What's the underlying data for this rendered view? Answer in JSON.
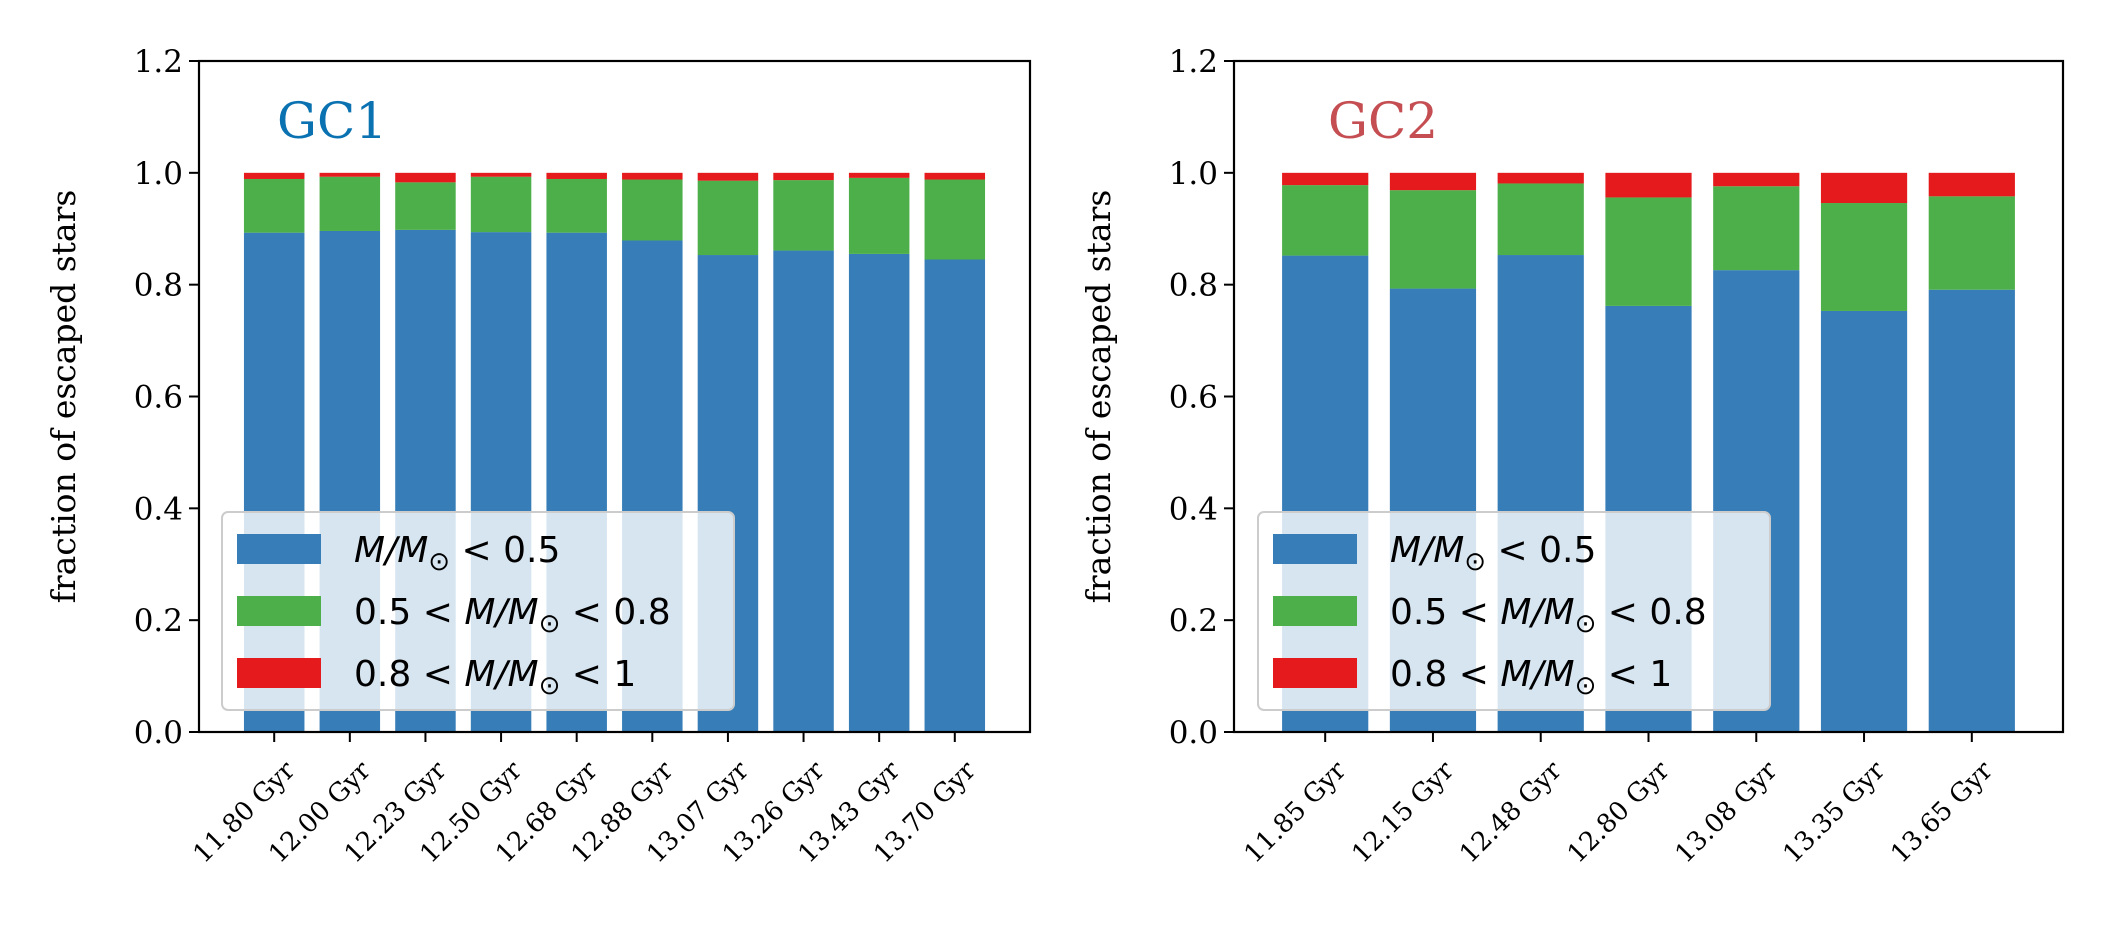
{
  "chart_data": [
    {
      "type": "bar",
      "stacked": true,
      "title": "GC1",
      "title_color": "#0b72b2",
      "ylabel": "fraction of escaped stars",
      "xlabel": "",
      "ylim": [
        0,
        1.2
      ],
      "yticks": [
        0.0,
        0.2,
        0.4,
        0.6,
        0.8,
        1.0,
        1.2
      ],
      "ytick_labels": [
        "0.0",
        "0.2",
        "0.4",
        "0.6",
        "0.8",
        "1.0",
        "1.2"
      ],
      "legend_position": "lower-left",
      "categories": [
        "11.80 Gyr",
        "12.00 Gyr",
        "12.23 Gyr",
        "12.50 Gyr",
        "12.68 Gyr",
        "12.88 Gyr",
        "13.07 Gyr",
        "13.26 Gyr",
        "13.43 Gyr",
        "13.70 Gyr"
      ],
      "series": [
        {
          "name": "M/M⊙ < 0.5",
          "legend": {
            "pre": "",
            "post": " < 0.5"
          },
          "color": "#377eb8",
          "values": [
            0.893,
            0.896,
            0.898,
            0.894,
            0.893,
            0.879,
            0.853,
            0.861,
            0.855,
            0.845
          ]
        },
        {
          "name": "0.5 < M/M⊙ < 0.8",
          "legend": {
            "pre": "0.5 < ",
            "post": " < 0.8"
          },
          "color": "#4daf4a",
          "values": [
            0.096,
            0.097,
            0.085,
            0.099,
            0.096,
            0.109,
            0.133,
            0.126,
            0.136,
            0.143
          ]
        },
        {
          "name": "0.8 < M/M⊙ < 1",
          "legend": {
            "pre": "0.8 < ",
            "post": " < 1"
          },
          "color": "#e41a1c",
          "values": [
            0.011,
            0.007,
            0.017,
            0.007,
            0.011,
            0.012,
            0.014,
            0.013,
            0.009,
            0.012
          ]
        }
      ]
    },
    {
      "type": "bar",
      "stacked": true,
      "title": "GC2",
      "title_color": "#c44e52",
      "ylabel": "fraction of escaped stars",
      "xlabel": "",
      "ylim": [
        0,
        1.2
      ],
      "yticks": [
        0.0,
        0.2,
        0.4,
        0.6,
        0.8,
        1.0,
        1.2
      ],
      "ytick_labels": [
        "0.0",
        "0.2",
        "0.4",
        "0.6",
        "0.8",
        "1.0",
        "1.2"
      ],
      "legend_position": "lower-left",
      "categories": [
        "11.85 Gyr",
        "12.15 Gyr",
        "12.48 Gyr",
        "12.80 Gyr",
        "13.08 Gyr",
        "13.35 Gyr",
        "13.65 Gyr"
      ],
      "series": [
        {
          "name": "M/M⊙ < 0.5",
          "legend": {
            "pre": "",
            "post": " < 0.5"
          },
          "color": "#377eb8",
          "values": [
            0.852,
            0.793,
            0.853,
            0.762,
            0.826,
            0.753,
            0.791
          ]
        },
        {
          "name": "0.5 < M/M⊙ < 0.8",
          "legend": {
            "pre": "0.5 < ",
            "post": " < 0.8"
          },
          "color": "#4daf4a",
          "values": [
            0.126,
            0.176,
            0.128,
            0.194,
            0.15,
            0.193,
            0.167
          ]
        },
        {
          "name": "0.8 < M/M⊙ < 1",
          "legend": {
            "pre": "0.8 < ",
            "post": " < 1"
          },
          "color": "#e41a1c",
          "values": [
            0.022,
            0.031,
            0.019,
            0.044,
            0.024,
            0.054,
            0.042
          ]
        }
      ]
    }
  ]
}
